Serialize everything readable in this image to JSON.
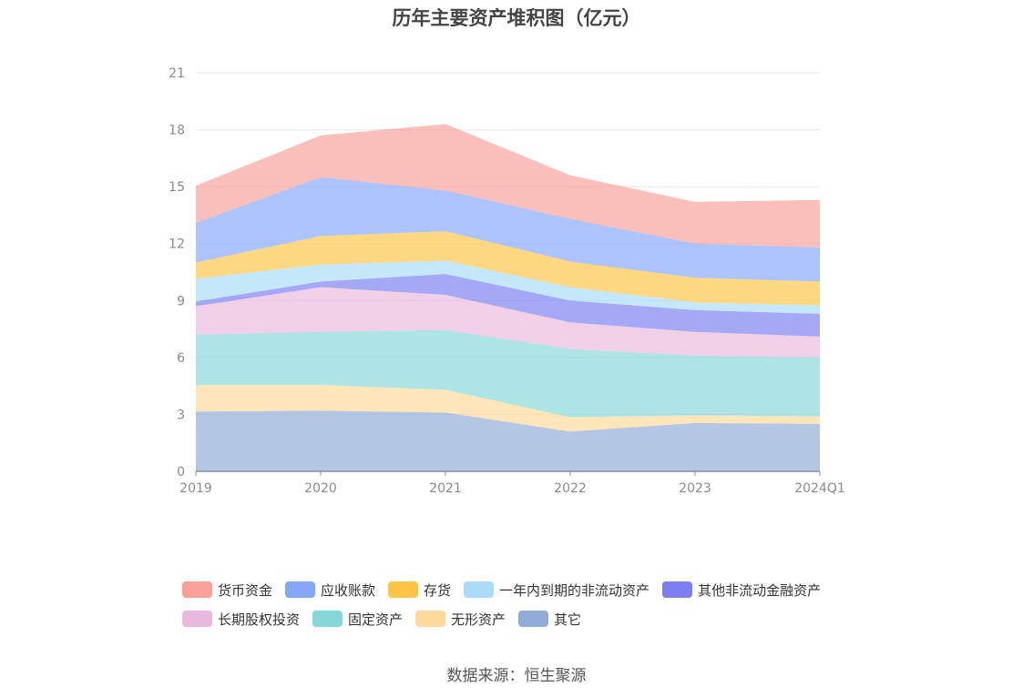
{
  "chart_data": {
    "type": "area",
    "stacked": true,
    "title": "历年主要资产堆积图（亿元）",
    "x": [
      "2019",
      "2020",
      "2021",
      "2022",
      "2023",
      "2024Q1"
    ],
    "ylim": [
      0,
      21
    ],
    "yticks": [
      0,
      3,
      6,
      9,
      12,
      15,
      18,
      21
    ],
    "grid": true,
    "legend_position": "bottom",
    "series": [
      {
        "name": "其它",
        "color": "#8facd9",
        "values": [
          3.15,
          3.2,
          3.1,
          2.1,
          2.55,
          2.5
        ]
      },
      {
        "name": "无形资产",
        "color": "#fdd89a",
        "values": [
          1.4,
          1.35,
          1.2,
          0.75,
          0.4,
          0.4
        ]
      },
      {
        "name": "固定资产",
        "color": "#86d8d8",
        "values": [
          2.65,
          2.8,
          3.15,
          3.6,
          3.15,
          3.1
        ]
      },
      {
        "name": "长期股权投资",
        "color": "#e9b8dc",
        "values": [
          1.5,
          2.35,
          1.85,
          1.4,
          1.25,
          1.1
        ]
      },
      {
        "name": "其他非流动金融资产",
        "color": "#7b7ff0",
        "values": [
          0.25,
          0.3,
          1.1,
          1.15,
          1.15,
          1.2
        ]
      },
      {
        "name": "一年内到期的非流动资产",
        "color": "#a8dcf8",
        "values": [
          1.2,
          0.9,
          0.7,
          0.7,
          0.4,
          0.45
        ]
      },
      {
        "name": "存货",
        "color": "#fdc546",
        "values": [
          0.85,
          1.5,
          1.55,
          1.35,
          1.3,
          1.25
        ]
      },
      {
        "name": "应收账款",
        "color": "#86a6f9",
        "values": [
          2.1,
          3.1,
          2.15,
          2.25,
          1.8,
          1.8
        ]
      },
      {
        "name": "货币资金",
        "color": "#f8a097",
        "values": [
          1.95,
          2.2,
          3.5,
          2.3,
          2.2,
          2.5
        ]
      }
    ],
    "legend_order": [
      "货币资金",
      "应收账款",
      "存货",
      "一年内到期的非流动资产",
      "其他非流动金融资产",
      "长期股权投资",
      "固定资产",
      "无形资产",
      "其它"
    ]
  },
  "source": "数据来源：恒生聚源"
}
